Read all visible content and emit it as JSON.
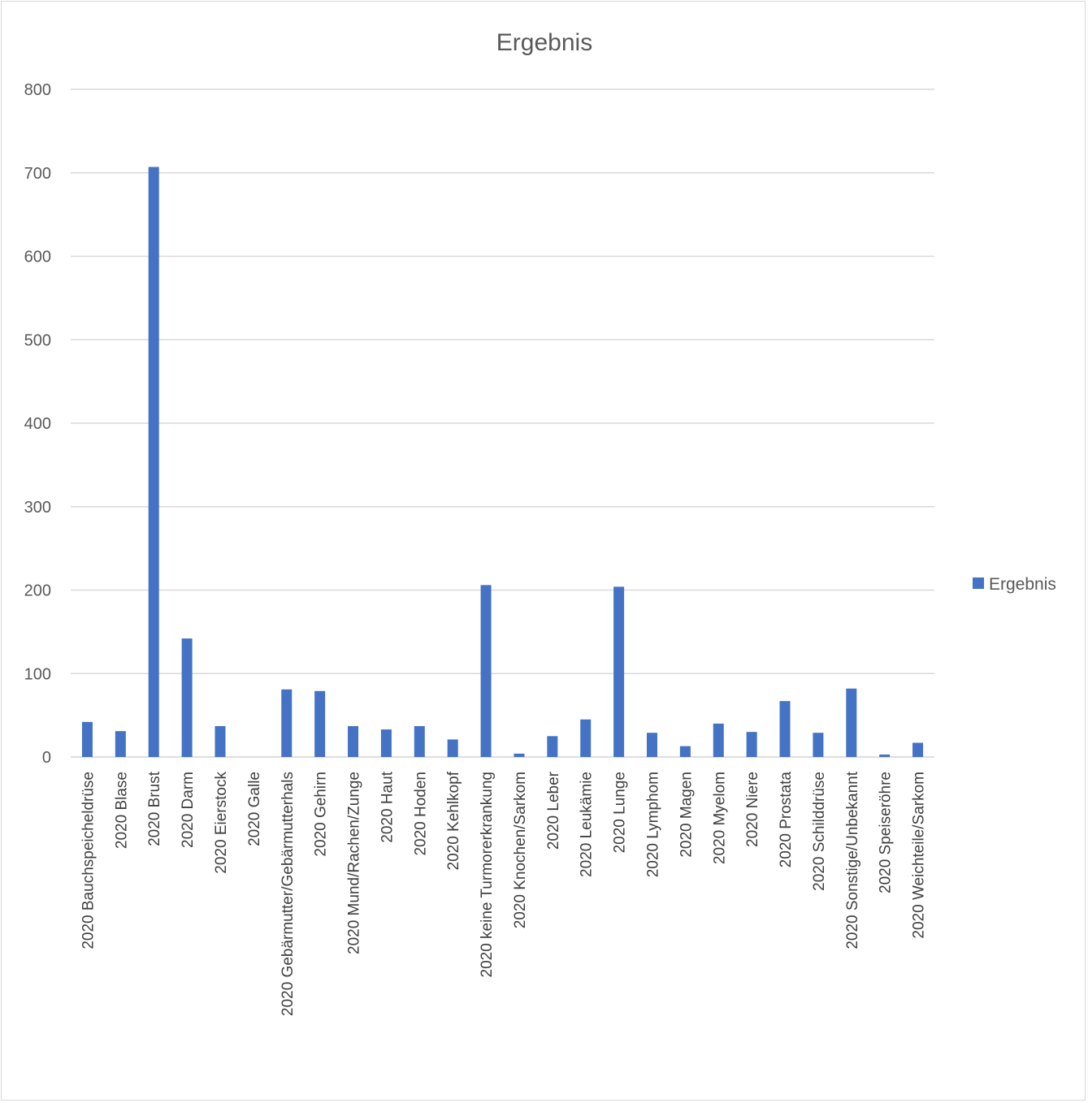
{
  "chart_data": {
    "type": "bar",
    "title": "Ergebnis",
    "xlabel": "",
    "ylabel": "",
    "ylim": [
      0,
      800
    ],
    "yticks": [
      0,
      100,
      200,
      300,
      400,
      500,
      600,
      700,
      800
    ],
    "grid": true,
    "legend_position": "right",
    "colors": {
      "bar": "#4472c4",
      "grid": "#d9d9d9",
      "text": "#595959"
    },
    "categories": [
      "2020 Bauchspeicheldrüse",
      "2020 Blase",
      "2020 Brust",
      "2020 Darm",
      "2020 Eierstock",
      "2020 Galle",
      "2020 Gebärmutter/Gebärmutterhals",
      "2020 Gehirn",
      "2020 Mund/Rachen/Zunge",
      "2020 Haut",
      "2020 Hoden",
      "2020 Kehlkopf",
      "2020 keine Turmorerkrankung",
      "2020 Knochen/Sarkom",
      "2020 Leber",
      "2020 Leukämie",
      "2020 Lunge",
      "2020 Lymphom",
      "2020 Magen",
      "2020 Myelom",
      "2020 Niere",
      "2020 Prostata",
      "2020 Schilddrüse",
      "2020 Sonstige/Unbekannt",
      "2020 Speiseröhre",
      "2020 Weichteile/Sarkom"
    ],
    "series": [
      {
        "name": "Ergebnis",
        "values": [
          42,
          31,
          707,
          142,
          37,
          0,
          81,
          79,
          37,
          33,
          37,
          21,
          206,
          4,
          25,
          45,
          204,
          29,
          13,
          40,
          30,
          67,
          29,
          82,
          3,
          17
        ]
      }
    ]
  }
}
